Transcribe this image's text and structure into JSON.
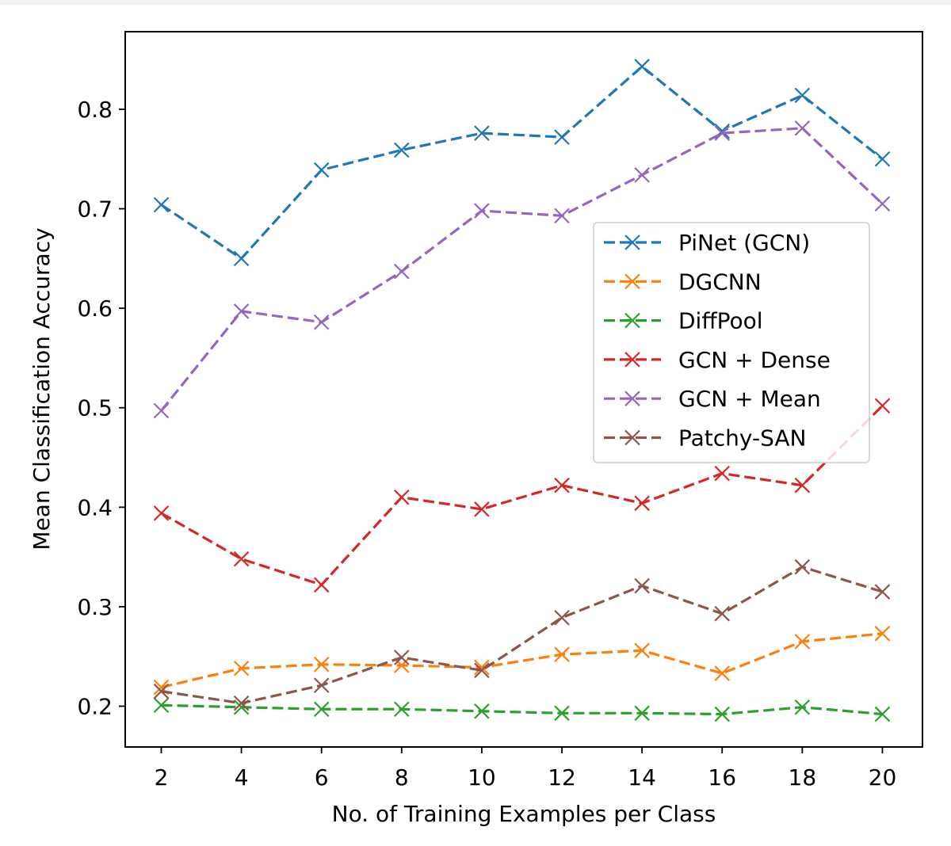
{
  "chart_data": {
    "type": "line",
    "title": "",
    "xlabel": "No. of Training Examples per Class",
    "ylabel": "Mean Classification Accuracy",
    "x": [
      2,
      4,
      6,
      8,
      10,
      12,
      14,
      16,
      18,
      20
    ],
    "xlim": [
      1.1,
      21.0
    ],
    "ylim": [
      0.159,
      0.878
    ],
    "xticks": [
      2,
      4,
      6,
      8,
      10,
      12,
      14,
      16,
      18,
      20
    ],
    "yticks": [
      0.2,
      0.3,
      0.4,
      0.5,
      0.6,
      0.7,
      0.8
    ],
    "ytick_labels": [
      "0.2",
      "0.3",
      "0.4",
      "0.5",
      "0.6",
      "0.7",
      "0.8"
    ],
    "xtick_labels": [
      "2",
      "4",
      "6",
      "8",
      "10",
      "12",
      "14",
      "16",
      "18",
      "20"
    ],
    "grid": false,
    "legend_position": "center-right",
    "line_style": "dashed",
    "marker": "x",
    "series": [
      {
        "name": "PiNet (GCN)",
        "color": "#1f77b4",
        "values": [
          0.704,
          0.65,
          0.739,
          0.759,
          0.776,
          0.772,
          0.843,
          0.778,
          0.814,
          0.75
        ]
      },
      {
        "name": "DGCNN",
        "color": "#ff7f0e",
        "values": [
          0.219,
          0.238,
          0.242,
          0.241,
          0.239,
          0.252,
          0.256,
          0.233,
          0.265,
          0.273
        ]
      },
      {
        "name": "DiffPool",
        "color": "#2ca02c",
        "values": [
          0.201,
          0.199,
          0.197,
          0.197,
          0.195,
          0.193,
          0.193,
          0.192,
          0.199,
          0.192
        ]
      },
      {
        "name": "GCN + Dense",
        "color": "#d62728",
        "values": [
          0.394,
          0.348,
          0.322,
          0.41,
          0.398,
          0.422,
          0.404,
          0.434,
          0.422,
          0.502
        ]
      },
      {
        "name": "GCN + Mean",
        "color": "#9467bd",
        "values": [
          0.497,
          0.597,
          0.586,
          0.637,
          0.698,
          0.693,
          0.734,
          0.776,
          0.781,
          0.705
        ]
      },
      {
        "name": "Patchy-SAN",
        "color": "#8c564b",
        "values": [
          0.215,
          0.203,
          0.221,
          0.249,
          0.236,
          0.289,
          0.321,
          0.293,
          0.34,
          0.315
        ]
      }
    ]
  }
}
